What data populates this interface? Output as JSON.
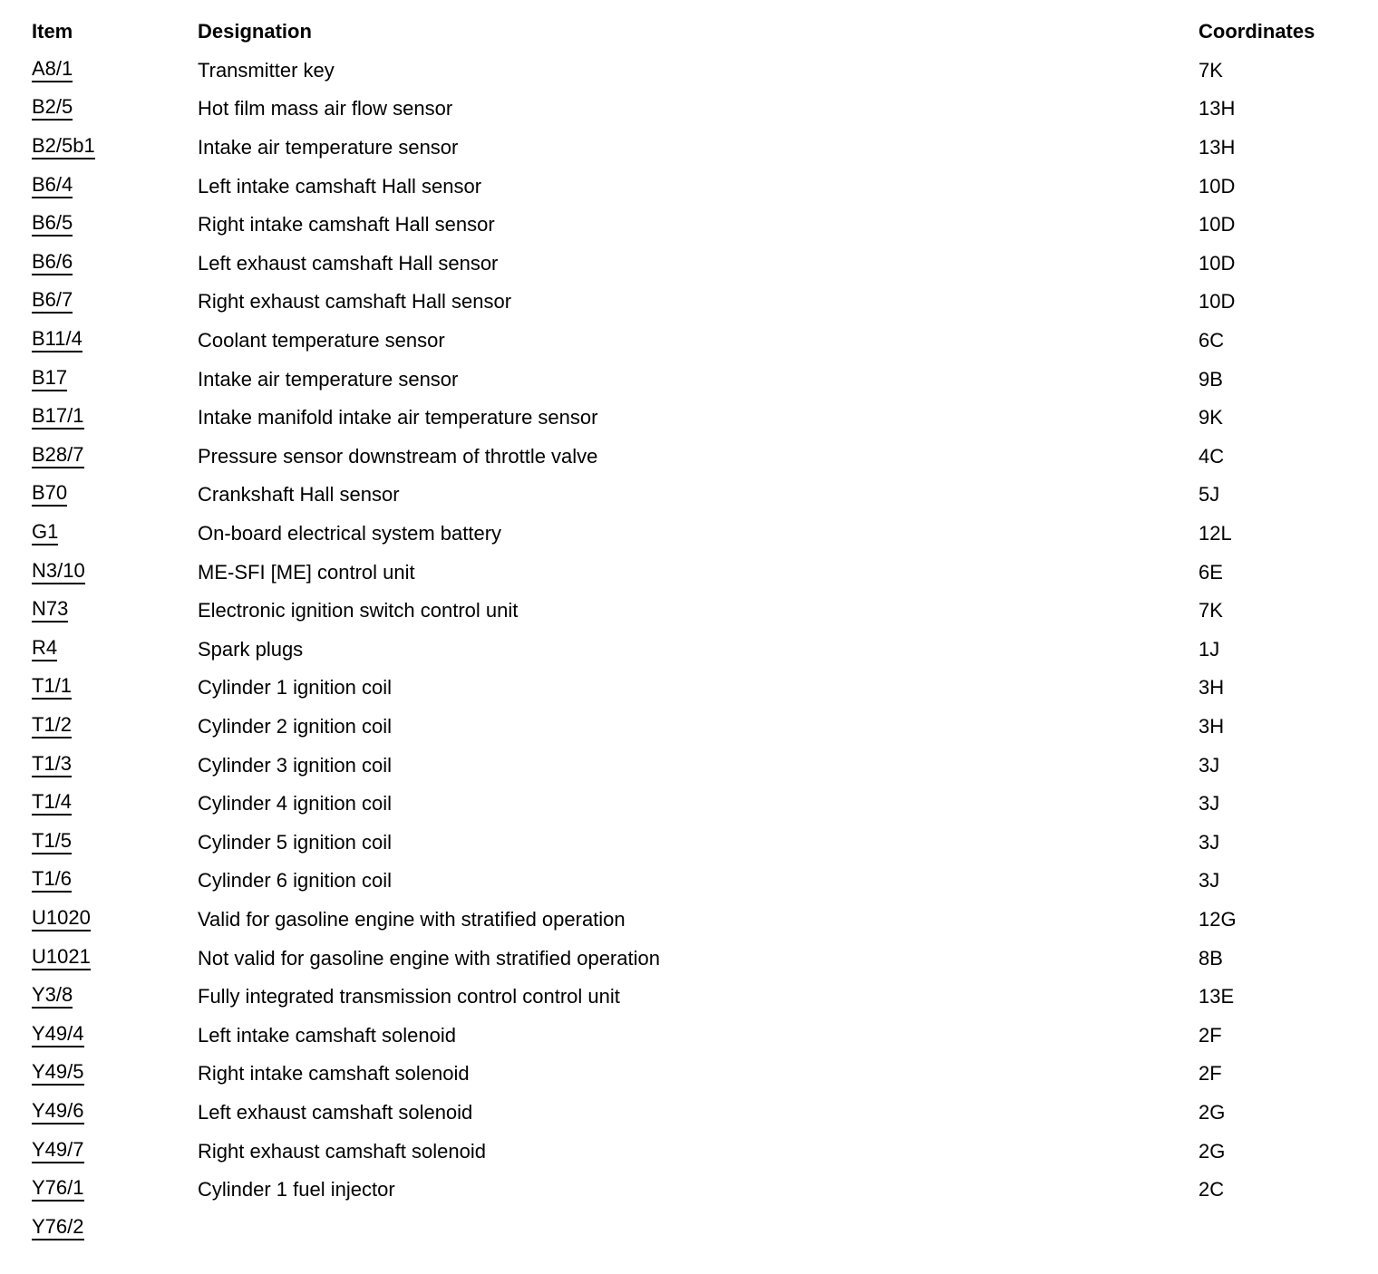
{
  "colors": {
    "text": "#000000",
    "background": "#ffffff",
    "item_underline": "#000000"
  },
  "table": {
    "headers": {
      "item": "Item",
      "designation": "Designation",
      "coordinates": "Coordinates"
    },
    "rows": [
      {
        "item": "A8/1",
        "designation": "Transmitter key",
        "coordinates": "7K"
      },
      {
        "item": "B2/5",
        "designation": "Hot film mass air flow sensor",
        "coordinates": "13H"
      },
      {
        "item": "B2/5b1",
        "designation": "Intake air temperature sensor",
        "coordinates": "13H"
      },
      {
        "item": "B6/4",
        "designation": "Left intake camshaft Hall sensor",
        "coordinates": "10D"
      },
      {
        "item": "B6/5",
        "designation": "Right intake camshaft Hall sensor",
        "coordinates": "10D"
      },
      {
        "item": "B6/6",
        "designation": "Left exhaust camshaft Hall sensor",
        "coordinates": "10D"
      },
      {
        "item": "B6/7",
        "designation": "Right exhaust camshaft Hall sensor",
        "coordinates": "10D"
      },
      {
        "item": "B11/4",
        "designation": "Coolant temperature sensor",
        "coordinates": "6C"
      },
      {
        "item": "B17",
        "designation": "Intake air temperature sensor",
        "coordinates": "9B"
      },
      {
        "item": "B17/1",
        "designation": "Intake manifold intake air temperature sensor",
        "coordinates": "9K"
      },
      {
        "item": "B28/7",
        "designation": "Pressure sensor downstream of throttle valve",
        "coordinates": "4C"
      },
      {
        "item": "B70",
        "designation": "Crankshaft Hall sensor",
        "coordinates": "5J"
      },
      {
        "item": "G1",
        "designation": "On-board electrical system battery",
        "coordinates": "12L"
      },
      {
        "item": "N3/10",
        "designation": "ME-SFI [ME] control unit",
        "coordinates": "6E"
      },
      {
        "item": "N73",
        "designation": "Electronic ignition switch control unit",
        "coordinates": "7K"
      },
      {
        "item": "R4",
        "designation": "Spark plugs",
        "coordinates": "1J"
      },
      {
        "item": "T1/1",
        "designation": "Cylinder 1 ignition coil",
        "coordinates": "3H"
      },
      {
        "item": "T1/2",
        "designation": "Cylinder 2 ignition coil",
        "coordinates": "3H"
      },
      {
        "item": "T1/3",
        "designation": "Cylinder 3 ignition coil",
        "coordinates": "3J"
      },
      {
        "item": "T1/4",
        "designation": "Cylinder 4 ignition coil",
        "coordinates": "3J"
      },
      {
        "item": "T1/5",
        "designation": "Cylinder 5 ignition coil",
        "coordinates": "3J"
      },
      {
        "item": "T1/6",
        "designation": "Cylinder 6 ignition coil",
        "coordinates": "3J"
      },
      {
        "item": "U1020",
        "designation": "Valid for gasoline engine with stratified operation",
        "coordinates": "12G"
      },
      {
        "item": "U1021",
        "designation": "Not valid for gasoline engine with stratified operation",
        "coordinates": "8B"
      },
      {
        "item": "Y3/8",
        "designation": "Fully integrated transmission control control unit",
        "coordinates": "13E"
      },
      {
        "item": "Y49/4",
        "designation": "Left intake camshaft solenoid",
        "coordinates": "2F"
      },
      {
        "item": "Y49/5",
        "designation": "Right intake camshaft solenoid",
        "coordinates": "2F"
      },
      {
        "item": "Y49/6",
        "designation": "Left exhaust camshaft solenoid",
        "coordinates": "2G"
      },
      {
        "item": "Y49/7",
        "designation": "Right exhaust camshaft solenoid",
        "coordinates": "2G"
      },
      {
        "item": "Y76/1",
        "designation": "Cylinder 1 fuel injector",
        "coordinates": "2C"
      },
      {
        "item": "Y76/2",
        "designation": "",
        "coordinates": ""
      }
    ]
  }
}
